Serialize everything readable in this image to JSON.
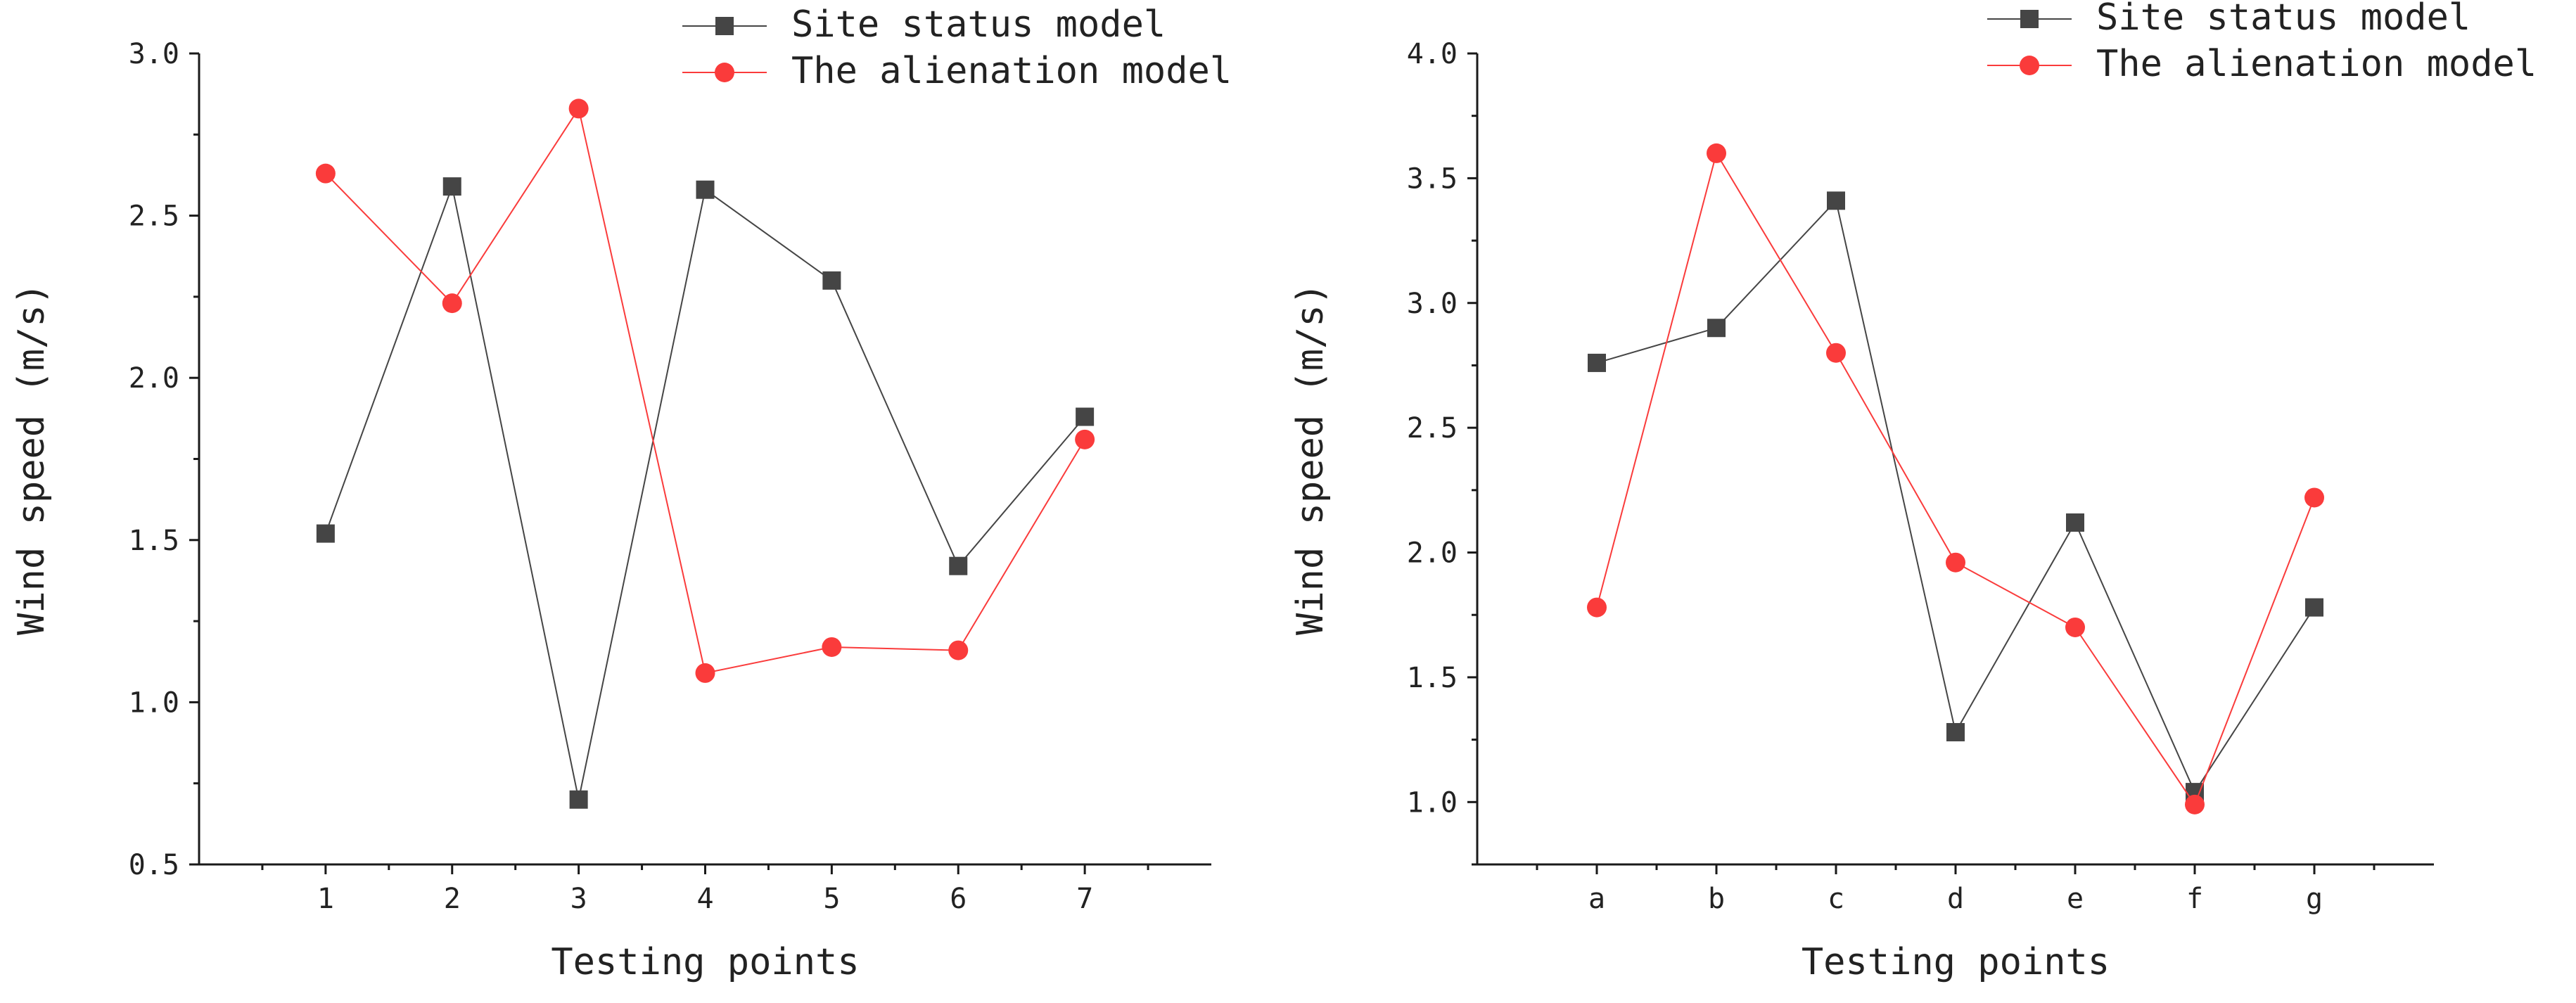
{
  "chart_data": [
    {
      "type": "line",
      "title": "",
      "xlabel": "Testing points",
      "ylabel": "Wind speed (m/s)",
      "categories": [
        "1",
        "2",
        "3",
        "4",
        "5",
        "6",
        "7"
      ],
      "ylim": [
        0.5,
        3.0
      ],
      "yticks": [
        0.5,
        1.0,
        1.5,
        2.0,
        2.5,
        3.0
      ],
      "ytick_labels": [
        "0.5",
        "1.0",
        "1.5",
        "2.0",
        "2.5",
        "3.0"
      ],
      "grid": false,
      "legend": "top-right",
      "series": [
        {
          "name": "Site status model",
          "marker": "square",
          "color": "#454545",
          "values": [
            1.52,
            2.59,
            0.7,
            2.58,
            2.3,
            1.42,
            1.88
          ]
        },
        {
          "name": "The alienation model",
          "marker": "circle",
          "color": "#fa3b3b",
          "values": [
            2.63,
            2.23,
            2.83,
            1.09,
            1.17,
            1.16,
            1.81
          ]
        }
      ]
    },
    {
      "type": "line",
      "title": "",
      "xlabel": "Testing points",
      "ylabel": "Wind speed (m/s)",
      "categories": [
        "a",
        "b",
        "c",
        "d",
        "e",
        "f",
        "g"
      ],
      "ylim": [
        0.75,
        4.0
      ],
      "yticks": [
        1.0,
        1.5,
        2.0,
        2.5,
        3.0,
        3.5,
        4.0
      ],
      "ytick_labels": [
        "1.0",
        "1.5",
        "2.0",
        "2.5",
        "3.0",
        "3.5",
        "4.0"
      ],
      "grid": false,
      "legend": "top-right",
      "series": [
        {
          "name": "Site status model",
          "marker": "square",
          "color": "#454545",
          "values": [
            2.76,
            2.9,
            3.41,
            1.28,
            2.12,
            1.04,
            1.78
          ]
        },
        {
          "name": "The alienation model",
          "marker": "circle",
          "color": "#fa3b3b",
          "values": [
            1.78,
            3.6,
            2.8,
            1.96,
            1.7,
            0.99,
            2.22
          ]
        }
      ]
    }
  ]
}
